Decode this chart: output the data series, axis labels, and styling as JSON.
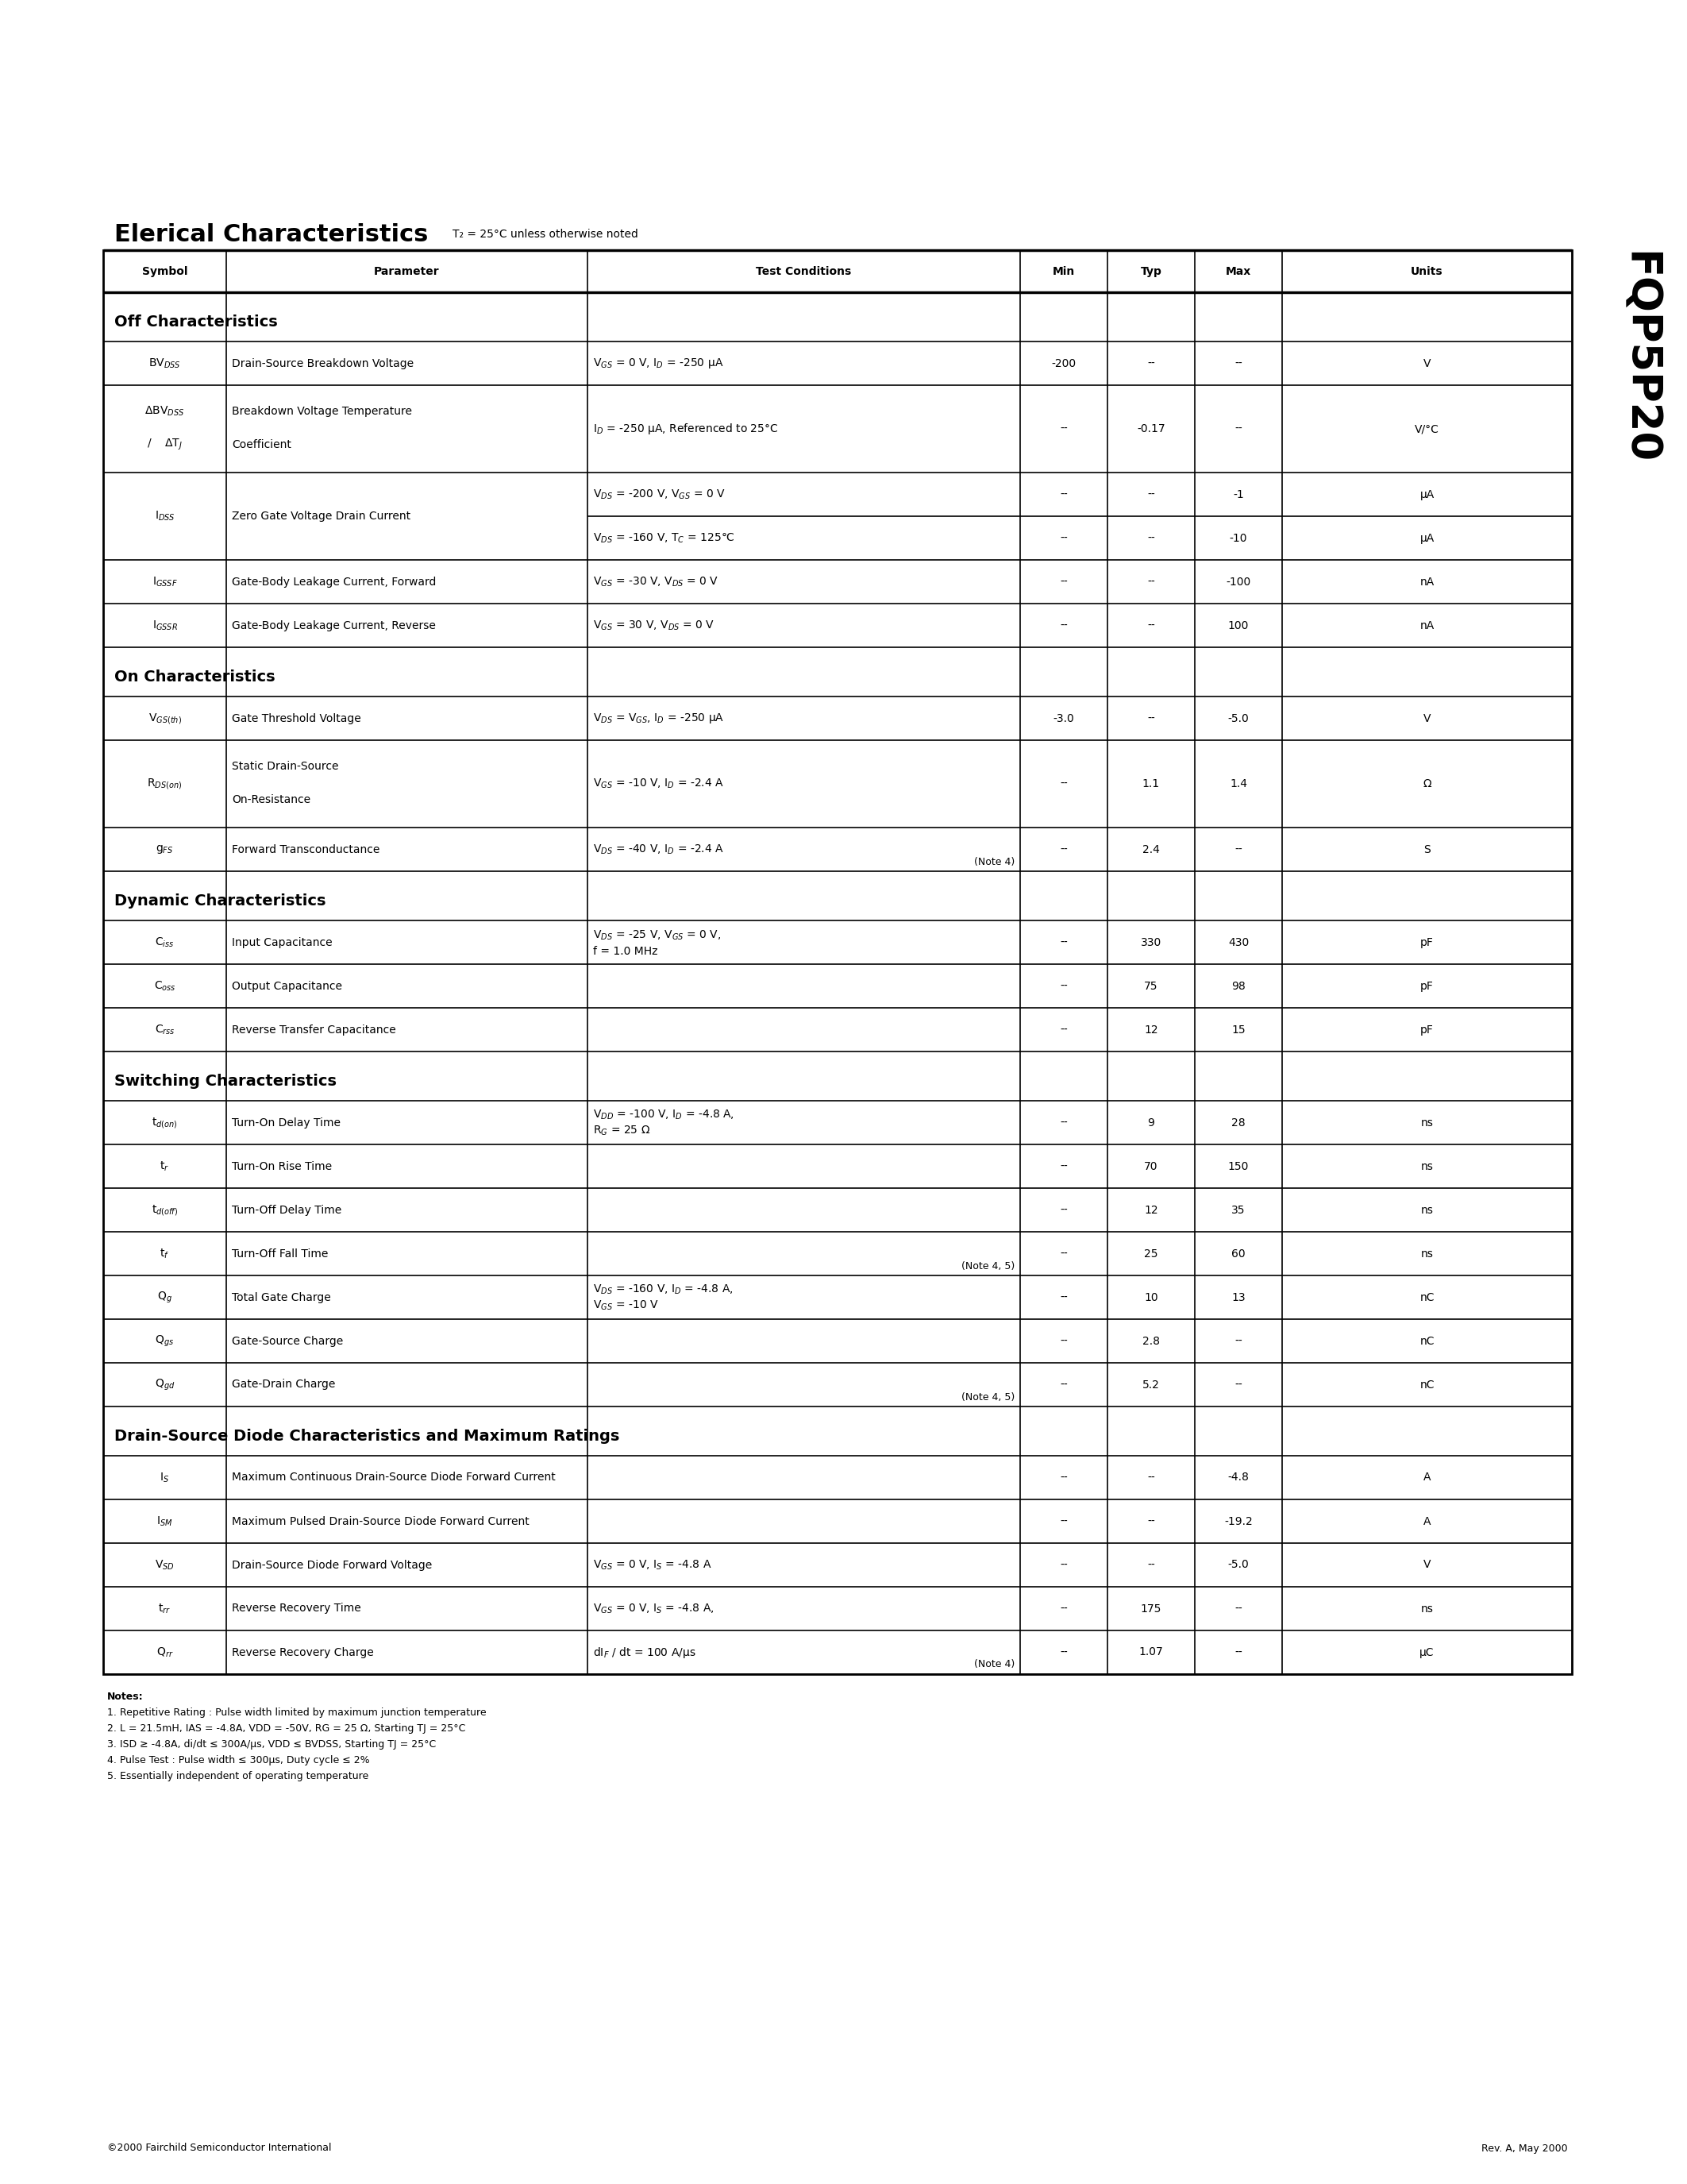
{
  "title": "Elerical Characteristics",
  "title_note": "T₂ = 25°C unless otherwise noted",
  "part_number": "FQP5P20",
  "footer_left": "©2000 Fairchild Semiconductor International",
  "footer_right": "Rev. A, May 2000",
  "notes": [
    "Notes:",
    "1. Repetitive Rating : Pulse width limited by maximum junction temperature",
    "2. L = 21.5mH, IAS = -4.8A, VDD = -50V, RG = 25 Ω, Starting TJ = 25°C",
    "3. ISD ≥ -4.8A, di/dt ≤ 300A/μs, VDD ≤ BVDSS, Starting TJ = 25°C",
    "4. Pulse Test : Pulse width ≤ 300μs, Duty cycle ≤ 2%",
    "5. Essentially independent of operating temperature"
  ]
}
